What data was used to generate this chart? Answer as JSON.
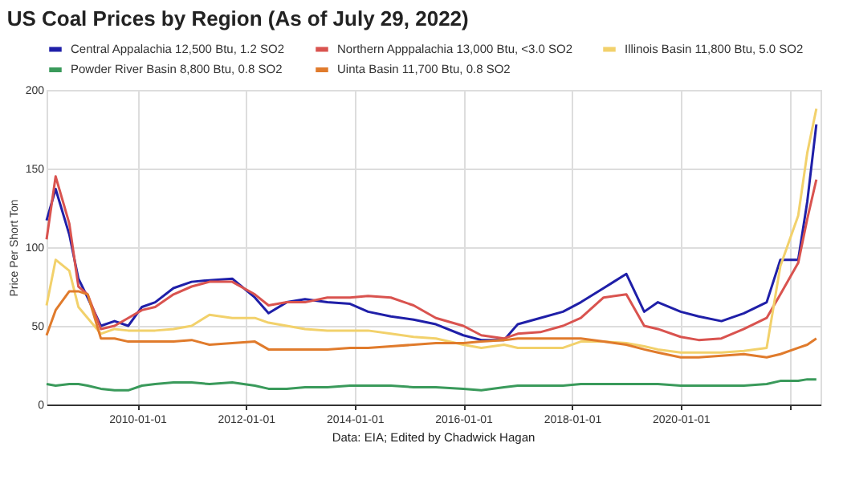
{
  "chart_data": {
    "type": "line",
    "title": "US Coal Prices by Region (As of July 29, 2022)",
    "ylabel": "Price Per Short Ton",
    "annotations": [
      "Data: EIA; Edited by Chadwick Hagan"
    ],
    "x": [
      "2008-05",
      "2008-07",
      "2008-10",
      "2008-12",
      "2009-02",
      "2009-05",
      "2009-08",
      "2009-11",
      "2010-02",
      "2010-05",
      "2010-09",
      "2011-01",
      "2011-05",
      "2011-10",
      "2012-03",
      "2012-06",
      "2012-10",
      "2013-02",
      "2013-07",
      "2013-12",
      "2014-04",
      "2014-09",
      "2015-02",
      "2015-07",
      "2016-01",
      "2016-05",
      "2016-10",
      "2017-01",
      "2017-06",
      "2017-11",
      "2018-03",
      "2018-08",
      "2019-01",
      "2019-05",
      "2019-08",
      "2020-01",
      "2020-05",
      "2020-10",
      "2021-03",
      "2021-08",
      "2021-11",
      "2022-03",
      "2022-05",
      "2022-07"
    ],
    "series": [
      {
        "name": "Central Appalachia 12,500 Btu, 1.2 SO2",
        "color": "#1f1fa8",
        "values": [
          117,
          137,
          108,
          80,
          68,
          50,
          53,
          50,
          62,
          65,
          74,
          78,
          79,
          80,
          68,
          58,
          65,
          67,
          65,
          64,
          59,
          56,
          54,
          51,
          44,
          41,
          41,
          51,
          55,
          59,
          65,
          74,
          83,
          59,
          65,
          59,
          56,
          53,
          58,
          65,
          92,
          92,
          129,
          178
        ]
      },
      {
        "name": "Northern Apppalachia 13,000 Btu, <3.0 SO2",
        "color": "#d9534f",
        "values": [
          105,
          145,
          115,
          75,
          70,
          48,
          50,
          55,
          60,
          62,
          70,
          75,
          78,
          78,
          70,
          63,
          65,
          65,
          68,
          68,
          69,
          68,
          63,
          55,
          50,
          44,
          42,
          45,
          46,
          50,
          55,
          68,
          70,
          50,
          48,
          43,
          41,
          42,
          48,
          55,
          70,
          90,
          118,
          143
        ]
      },
      {
        "name": "Illinois Basin 11,800 Btu, 5.0 SO2",
        "color": "#f2d16b",
        "values": [
          63,
          92,
          85,
          62,
          55,
          45,
          48,
          47,
          47,
          47,
          48,
          50,
          57,
          55,
          55,
          52,
          50,
          48,
          47,
          47,
          47,
          45,
          43,
          42,
          38,
          36,
          38,
          36,
          36,
          36,
          40,
          40,
          39,
          37,
          35,
          33,
          33,
          33,
          34,
          36,
          88,
          120,
          160,
          188
        ]
      },
      {
        "name": "Powder River Basin 8,800 Btu, 0.8 SO2",
        "color": "#3a9a5b",
        "values": [
          13,
          12,
          13,
          13,
          12,
          10,
          9,
          9,
          12,
          13,
          14,
          14,
          13,
          14,
          12,
          10,
          10,
          11,
          11,
          12,
          12,
          12,
          11,
          11,
          10,
          9,
          11,
          12,
          12,
          12,
          13,
          13,
          13,
          13,
          13,
          12,
          12,
          12,
          12,
          13,
          15,
          15,
          16,
          16
        ]
      },
      {
        "name": "Uinta Basin 11,700 Btu, 0.8 SO2",
        "color": "#e07b2c",
        "values": [
          44,
          60,
          72,
          72,
          70,
          42,
          42,
          40,
          40,
          40,
          40,
          41,
          38,
          39,
          40,
          35,
          35,
          35,
          35,
          36,
          36,
          37,
          38,
          39,
          39,
          40,
          41,
          42,
          42,
          42,
          42,
          40,
          38,
          35,
          33,
          30,
          30,
          31,
          32,
          30,
          32,
          36,
          38,
          42
        ]
      }
    ],
    "xlim": [
      "2008-05-01",
      "2022-07-29"
    ],
    "xticks": [
      {
        "value": "2010-01-01",
        "label": "2010-01-01"
      },
      {
        "value": "2012-01-01",
        "label": "2012-01-01"
      },
      {
        "value": "2014-01-01",
        "label": "2014-01-01"
      },
      {
        "value": "2016-01-01",
        "label": "2016-01-01"
      },
      {
        "value": "2018-01-01",
        "label": "2018-01-01"
      },
      {
        "value": "2020-01-01",
        "label": "2020-01-01"
      },
      {
        "value": "2022-01-01",
        "label": null
      }
    ],
    "ylim": [
      0,
      200
    ],
    "yticks": [
      0,
      50,
      100,
      150,
      200
    ],
    "grid": true,
    "legend": "top"
  }
}
